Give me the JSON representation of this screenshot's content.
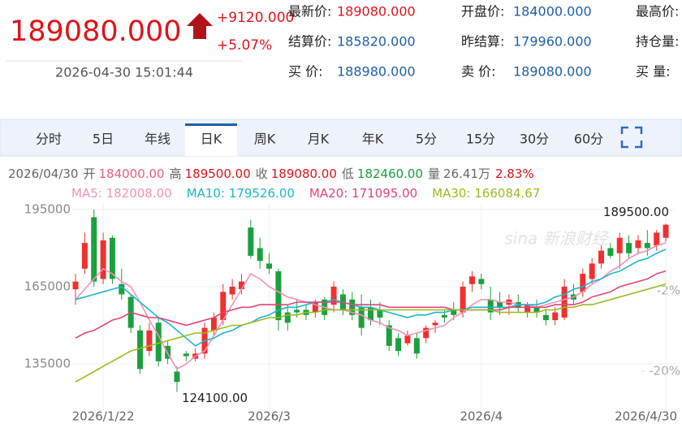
{
  "header": {
    "last_price": "189080.000",
    "change": "+9120.000",
    "change_pct": "+5.07%",
    "time": "2026-04-30 15:01:44",
    "fields": [
      {
        "label": "最新价:",
        "value": "189080.000"
      },
      {
        "label": "开盘价:",
        "value": "184000.000"
      },
      {
        "label": "最高价:"
      },
      {
        "label": "结算价:",
        "value": "185820.000"
      },
      {
        "label": "昨结算:",
        "value": "179960.000"
      },
      {
        "label": "持仓量:"
      },
      {
        "label": "买  价:",
        "value": "188980.000"
      },
      {
        "label": "卖  价:",
        "value": "189080.000"
      },
      {
        "label": "买  量:"
      }
    ]
  },
  "tabs": [
    "分时",
    "5日",
    "年线",
    "日K",
    "周K",
    "月K",
    "年K",
    "5分",
    "15分",
    "30分",
    "60分"
  ],
  "active_tab": 3,
  "chart_data": {
    "type": "candlestick",
    "info": {
      "date": "2026/04/30",
      "items": [
        {
          "label": "开",
          "value": "184000.00",
          "color": "#e8607a"
        },
        {
          "label": "高",
          "value": "189500.00",
          "color": "#e0131b"
        },
        {
          "label": "收",
          "value": "189080.00",
          "color": "#e0131b"
        },
        {
          "label": "低",
          "value": "182460.00",
          "color": "#19a03c"
        },
        {
          "label": "量",
          "value": "26.41万",
          "color": "#666666"
        }
      ],
      "pct": "2.83%",
      "pct_color": "#e0131b"
    },
    "categories": [
      null,
      null,
      null,
      "2026/1/22",
      null,
      null,
      null,
      null,
      null,
      null,
      null,
      null,
      null,
      null,
      null,
      null,
      null,
      null,
      null,
      null,
      null,
      "2026/3",
      null,
      null,
      null,
      null,
      null,
      null,
      null,
      null,
      null,
      null,
      null,
      null,
      null,
      null,
      null,
      null,
      null,
      null,
      null,
      null,
      null,
      null,
      "2026/4",
      null,
      null,
      null,
      null,
      null,
      null,
      null,
      null,
      null,
      null,
      null,
      null,
      null,
      null,
      null,
      null,
      null,
      null,
      null,
      "2026/4/30"
    ],
    "open": [
      164000,
      172000,
      192000,
      168000,
      184000,
      166000,
      161000,
      148000,
      140000,
      151000,
      142000,
      132000,
      139000,
      137000,
      139000,
      148000,
      152000,
      162000,
      164000,
      188000,
      180000,
      174000,
      171000,
      155000,
      156000,
      156000,
      155000,
      160000,
      158000,
      162000,
      160000,
      157000,
      157000,
      156000,
      150000,
      145000,
      143000,
      145000,
      145000,
      150000,
      154000,
      156000,
      155000,
      166000,
      168000,
      160000,
      159000,
      158000,
      159000,
      155000,
      157000,
      154000,
      152000,
      153000,
      162000,
      163000,
      168000,
      174000,
      180000,
      178000,
      182000,
      180000,
      182000,
      181000,
      184000
    ],
    "high": [
      170000,
      186000,
      195000,
      186000,
      185000,
      172000,
      162000,
      150000,
      151000,
      153000,
      144000,
      134000,
      140000,
      141000,
      151000,
      155000,
      166000,
      168000,
      170000,
      191000,
      184000,
      178000,
      172000,
      158000,
      160000,
      158000,
      160000,
      161000,
      167000,
      164000,
      163000,
      162000,
      160000,
      159000,
      152000,
      147000,
      148000,
      147000,
      150000,
      152000,
      156000,
      159000,
      167000,
      171000,
      170000,
      165000,
      163000,
      162000,
      162000,
      159000,
      160000,
      156000,
      157000,
      168000,
      166000,
      172000,
      176000,
      181000,
      182000,
      186000,
      185000,
      185000,
      187000,
      187000,
      189500
    ],
    "low": [
      158000,
      170000,
      165000,
      166000,
      166000,
      160000,
      147000,
      131000,
      138000,
      134000,
      135000,
      124100,
      136000,
      136000,
      137000,
      146000,
      150000,
      160000,
      162000,
      176000,
      172000,
      170000,
      148000,
      148000,
      153000,
      152000,
      153000,
      152000,
      155000,
      154000,
      152000,
      146000,
      150000,
      150000,
      140000,
      138000,
      142000,
      137000,
      143000,
      147000,
      151000,
      152000,
      153000,
      163000,
      164000,
      152000,
      154000,
      154000,
      155000,
      153000,
      153000,
      150000,
      150000,
      152000,
      158000,
      161000,
      166000,
      172000,
      176000,
      172000,
      176000,
      178000,
      177000,
      179000,
      182460
    ],
    "close": [
      167000,
      182000,
      167000,
      183000,
      168000,
      162000,
      149000,
      133000,
      148000,
      136000,
      137000,
      128000,
      138000,
      139000,
      149000,
      153000,
      163000,
      165000,
      167000,
      177000,
      175000,
      172000,
      152000,
      151000,
      155000,
      154000,
      159000,
      154000,
      165000,
      156000,
      154000,
      149000,
      152000,
      153000,
      142000,
      140000,
      146000,
      139000,
      149000,
      151000,
      153000,
      154000,
      165000,
      169000,
      166000,
      155000,
      157000,
      160000,
      157000,
      158000,
      155000,
      152000,
      155000,
      165000,
      160000,
      170000,
      174000,
      179000,
      177000,
      184000,
      178000,
      183000,
      180000,
      186000,
      189080
    ],
    "up_color": "#f03030",
    "down_color": "#1ba03e",
    "series": [
      {
        "name": "MA5: 182008.00",
        "color": "#f291b5",
        "values": [
          160000,
          164000,
          168000,
          172000,
          170000,
          167000,
          165000,
          159000,
          152000,
          146000,
          139000,
          133000,
          135000,
          138000,
          140000,
          146000,
          152000,
          158000,
          164000,
          170000,
          168000,
          165000,
          163000,
          161000,
          160000,
          159000,
          158000,
          157000,
          156000,
          156000,
          155000,
          154000,
          152000,
          151000,
          149000,
          148000,
          146000,
          147000,
          148000,
          149000,
          150000,
          153000,
          155000,
          158000,
          160000,
          160000,
          159000,
          159000,
          158000,
          158000,
          157000,
          158000,
          159000,
          160000,
          161000,
          163000,
          166000,
          168000,
          171000,
          173000,
          176000,
          178000,
          179000,
          181000,
          182008
        ]
      },
      {
        "name": "MA10: 179526.00",
        "color": "#1cb5d0",
        "values": [
          160000,
          161000,
          162000,
          163000,
          164000,
          165000,
          162000,
          159000,
          156000,
          153000,
          151000,
          148000,
          145000,
          142000,
          144000,
          145000,
          147000,
          148000,
          150000,
          151000,
          153000,
          154000,
          156000,
          157000,
          157000,
          158000,
          159000,
          159000,
          160000,
          159000,
          158000,
          157000,
          157000,
          156000,
          155000,
          154000,
          153000,
          154000,
          154000,
          155000,
          155000,
          156000,
          156000,
          157000,
          157000,
          157000,
          157000,
          157000,
          158000,
          158000,
          158000,
          159000,
          161000,
          162000,
          164000,
          165000,
          167000,
          168000,
          170000,
          171000,
          173000,
          175000,
          176000,
          178000,
          179526
        ]
      },
      {
        "name": "MA20: 171095.00",
        "color": "#e2447a",
        "values": [
          145000,
          147000,
          148000,
          150000,
          152000,
          153000,
          155000,
          154000,
          153000,
          153000,
          152000,
          151000,
          150000,
          151000,
          152000,
          153000,
          155000,
          156000,
          157000,
          157000,
          158000,
          158000,
          158000,
          158000,
          159000,
          159000,
          159000,
          159000,
          159000,
          159000,
          158000,
          158000,
          158000,
          158000,
          157000,
          157000,
          157000,
          157000,
          157000,
          157000,
          157000,
          156000,
          156000,
          156000,
          156000,
          156000,
          156000,
          157000,
          157000,
          157000,
          157000,
          157000,
          158000,
          158000,
          158000,
          159000,
          161000,
          162000,
          163000,
          165000,
          166000,
          167000,
          168000,
          170000,
          171095
        ]
      },
      {
        "name": "MA30: 166084.67",
        "color": "#9cba1e",
        "values": [
          128000,
          130000,
          132000,
          134000,
          136000,
          138000,
          140000,
          141000,
          142000,
          143000,
          144000,
          145000,
          146000,
          147000,
          147000,
          148000,
          149000,
          150000,
          150000,
          151000,
          152000,
          153000,
          153000,
          154000,
          154000,
          155000,
          155000,
          156000,
          156000,
          156000,
          156000,
          156000,
          156000,
          156000,
          156000,
          156000,
          156000,
          156000,
          156000,
          156000,
          156000,
          156000,
          156000,
          156000,
          156000,
          156000,
          155000,
          155000,
          155000,
          155000,
          155000,
          156000,
          156000,
          157000,
          157000,
          158000,
          158000,
          159000,
          160000,
          161000,
          162000,
          163000,
          164000,
          165000,
          166085
        ]
      }
    ],
    "ylim": [
      117000,
      197500
    ],
    "yticks": [
      135000,
      165000,
      195000
    ],
    "y2lim": [
      -28.7,
      17.6
    ],
    "y2ticks": [
      {
        "value": -2,
        "label": "-2%"
      },
      {
        "value": -20,
        "label": "-20%"
      }
    ],
    "max_label": {
      "value": 189500,
      "label": "189500.00"
    },
    "min_label": {
      "value": 124100,
      "label": "124100.00"
    },
    "watermark": "sina 新浪财经",
    "grid": true
  }
}
